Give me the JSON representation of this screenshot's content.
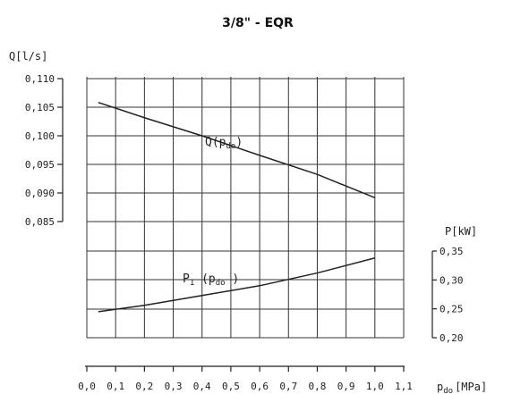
{
  "chart_data": {
    "type": "line",
    "title": "3/8\" - EQR",
    "x": [
      0.04,
      0.2,
      0.4,
      0.6,
      0.8,
      1.0
    ],
    "xlabel": {
      "main": "p",
      "sub": "do",
      "unit": "[MPa]"
    },
    "xlim": [
      0.0,
      1.1
    ],
    "xticks": [
      "0,0",
      "0,1",
      "0,2",
      "0,3",
      "0,4",
      "0,5",
      "0,6",
      "0,7",
      "0,8",
      "0,9",
      "1,0",
      "1,1"
    ],
    "left_axis": {
      "label": "Q[l/s]",
      "ylim": [
        0.08,
        0.11
      ],
      "ticks": [
        "0,110",
        "0,105",
        "0,100",
        "0,095",
        "0,090",
        "0,085"
      ]
    },
    "right_axis": {
      "label": "P[kW]",
      "ylim": [
        0.2,
        0.35
      ],
      "ticks": [
        "0,35",
        "0,30",
        "0,25",
        "0,20"
      ]
    },
    "grid": true,
    "series": [
      {
        "name": {
          "main": "Q(p",
          "sub": "do",
          "end": ")"
        },
        "axis": "left",
        "x": [
          0.04,
          0.2,
          0.4,
          0.6,
          0.8,
          1.0
        ],
        "values": [
          0.105,
          0.1018,
          0.098,
          0.0939,
          0.0899,
          0.085
        ]
      },
      {
        "name": {
          "main": "P",
          "sub1": "1",
          "mid": " (p",
          "sub": "do",
          "end": " )"
        },
        "axis": "right",
        "x": [
          0.04,
          0.2,
          0.4,
          0.6,
          0.8,
          1.0
        ],
        "values": [
          0.245,
          0.256,
          0.273,
          0.29,
          0.312,
          0.338
        ]
      }
    ]
  }
}
